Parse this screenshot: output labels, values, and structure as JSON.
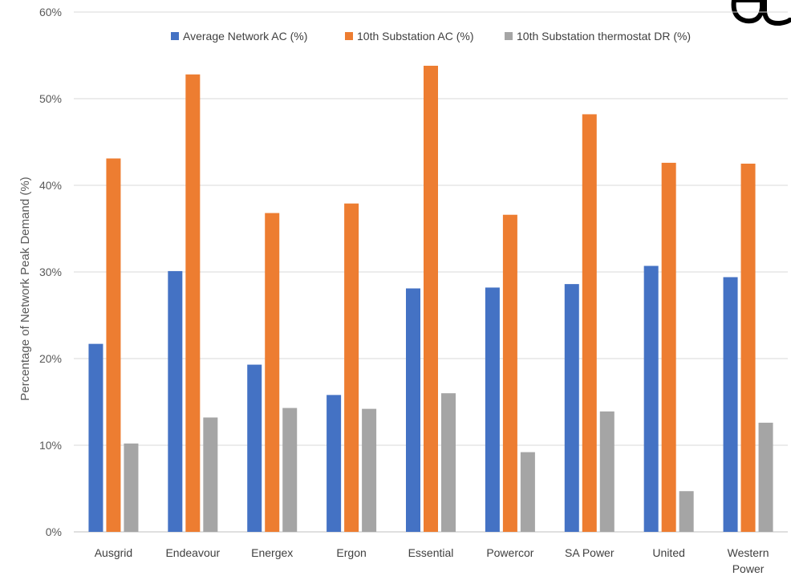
{
  "chart_data": {
    "type": "bar",
    "title": "",
    "xlabel": "",
    "ylabel": "Percentage of Network Peak Demand (%)",
    "ylim": [
      0,
      60
    ],
    "ytick_step": 10,
    "ytick_labels": [
      "0%",
      "10%",
      "20%",
      "30%",
      "40%",
      "50%",
      "60%"
    ],
    "grid": true,
    "legend_position": "top",
    "categories": [
      [
        "Ausgrid"
      ],
      [
        "Endeavour"
      ],
      [
        "Energex"
      ],
      [
        "Ergon"
      ],
      [
        "Essential"
      ],
      [
        "Powercor"
      ],
      [
        "SA Power"
      ],
      [
        "United"
      ],
      [
        "Western",
        "Power"
      ]
    ],
    "series": [
      {
        "name": "Average Network AC (%)",
        "color": "#4472c4",
        "values": [
          21.7,
          30.1,
          19.3,
          15.8,
          28.1,
          28.2,
          28.6,
          30.7,
          29.4
        ]
      },
      {
        "name": "10th Substation AC (%)",
        "color": "#ed7d31",
        "values": [
          43.1,
          52.8,
          36.8,
          37.9,
          53.8,
          36.6,
          48.2,
          42.6,
          42.5
        ]
      },
      {
        "name": "10th Substation thermostat DR (%)",
        "color": "#a5a5a5",
        "values": [
          10.2,
          13.2,
          14.3,
          14.2,
          16.0,
          9.2,
          13.9,
          4.7,
          12.6
        ]
      }
    ]
  }
}
